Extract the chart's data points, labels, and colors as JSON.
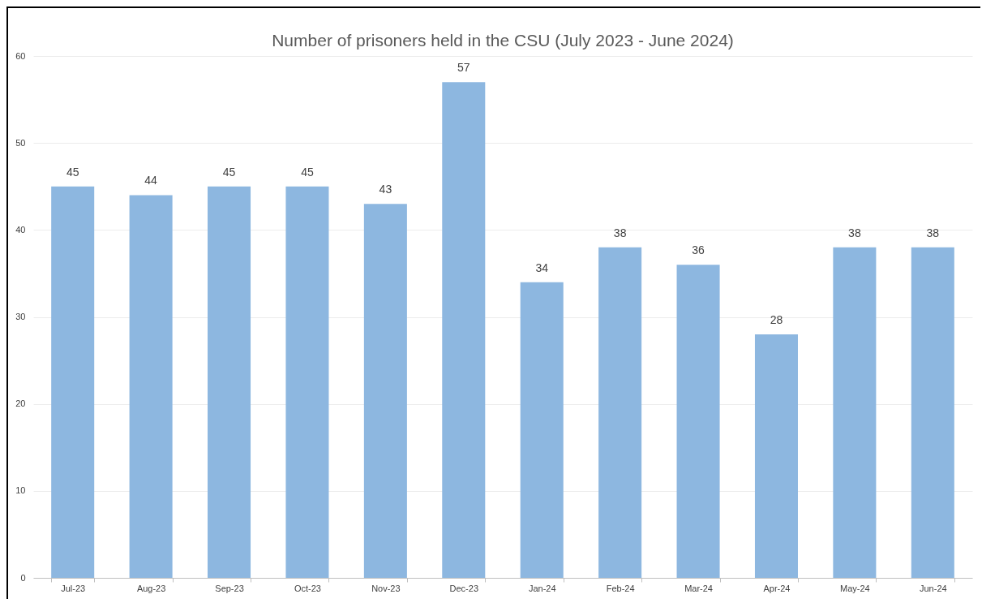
{
  "chart_data": {
    "type": "bar",
    "title": "Number of prisoners held in the CSU (July 2023 - June 2024)",
    "categories": [
      "Jul-23",
      "Aug-23",
      "Sep-23",
      "Oct-23",
      "Nov-23",
      "Dec-23",
      "Jan-24",
      "Feb-24",
      "Mar-24",
      "Apr-24",
      "May-24",
      "Jun-24"
    ],
    "values": [
      45,
      44,
      45,
      45,
      43,
      57,
      34,
      38,
      36,
      28,
      38,
      38
    ],
    "color": "#8db7e0",
    "ylim": [
      0,
      60
    ],
    "yticks": [
      0,
      10,
      20,
      30,
      40,
      50,
      60
    ],
    "grid": "y",
    "data_labels": true
  }
}
